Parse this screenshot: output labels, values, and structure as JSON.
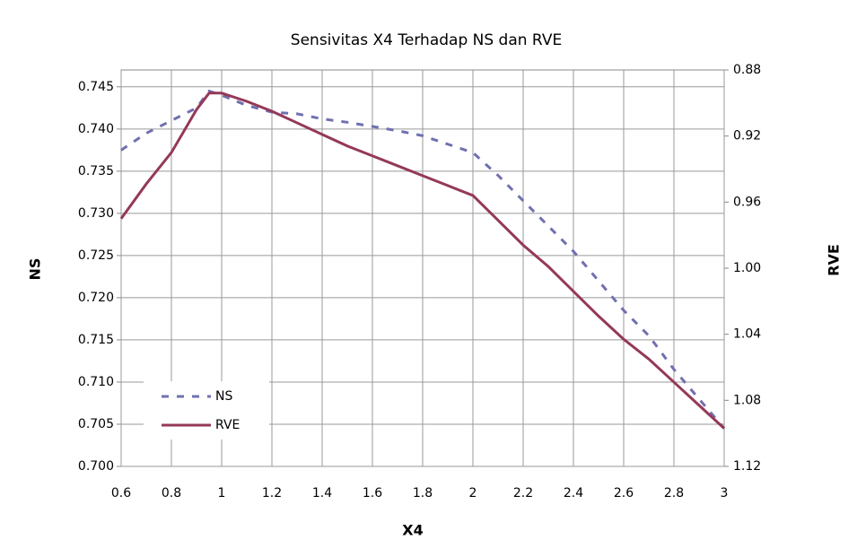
{
  "chart_data": {
    "type": "line",
    "title": "Sensivitas X4 Terhadap NS dan RVE",
    "x_label": "X4",
    "y_label": "NS",
    "y2_label": "RVE",
    "x": [
      0.6,
      0.7,
      0.8,
      0.9,
      0.95,
      1.0,
      1.1,
      1.2,
      1.3,
      1.4,
      1.5,
      1.6,
      1.7,
      1.8,
      1.9,
      2.0,
      2.1,
      2.2,
      2.3,
      2.4,
      2.5,
      2.6,
      2.7,
      2.8,
      2.9,
      3.0
    ],
    "series": [
      {
        "name": "NS",
        "color": "#7070b0",
        "dashed": true,
        "values": [
          0.7375,
          0.7395,
          0.741,
          0.7425,
          0.7445,
          0.744,
          0.7428,
          0.742,
          0.7418,
          0.7412,
          0.7408,
          0.7403,
          0.7398,
          0.7392,
          0.7382,
          0.7372,
          0.7345,
          0.7315,
          0.7285,
          0.7255,
          0.722,
          0.7185,
          0.7155,
          0.7115,
          0.708,
          0.7045
        ]
      },
      {
        "name": "RVE",
        "color": "#943958",
        "axis": "y2",
        "values": [
          0.97,
          0.949,
          0.93,
          0.904,
          0.894,
          0.894,
          0.899,
          0.905,
          0.912,
          0.919,
          0.926,
          0.932,
          0.938,
          0.944,
          0.95,
          0.956,
          0.971,
          0.986,
          0.999,
          1.014,
          1.029,
          1.043,
          1.055,
          1.069,
          1.083,
          1.097
        ]
      }
    ],
    "xlim": [
      0.6,
      3
    ],
    "xticks": [
      0.6,
      0.8,
      1,
      1.2,
      1.4,
      1.6,
      1.8,
      2,
      2.2,
      2.4,
      2.6,
      2.8,
      3
    ],
    "ylim": [
      0.7,
      0.747
    ],
    "yticks": [
      {
        "value": 0.7,
        "label": "0.700"
      },
      0.705,
      {
        "value": 0.71,
        "label": "0.710"
      },
      0.715,
      {
        "value": 0.72,
        "label": "0.720"
      },
      0.725,
      {
        "value": 0.73,
        "label": "0.730"
      },
      0.735,
      {
        "value": 0.74,
        "label": "0.740"
      },
      0.745
    ],
    "y2lim": [
      1.12,
      0.88
    ],
    "y2ticks": [
      0.88,
      0.92,
      0.96,
      {
        "value": 1.0,
        "label": "1.00"
      },
      1.04,
      1.08,
      1.12
    ],
    "grid": true,
    "legend": "lower-left"
  }
}
